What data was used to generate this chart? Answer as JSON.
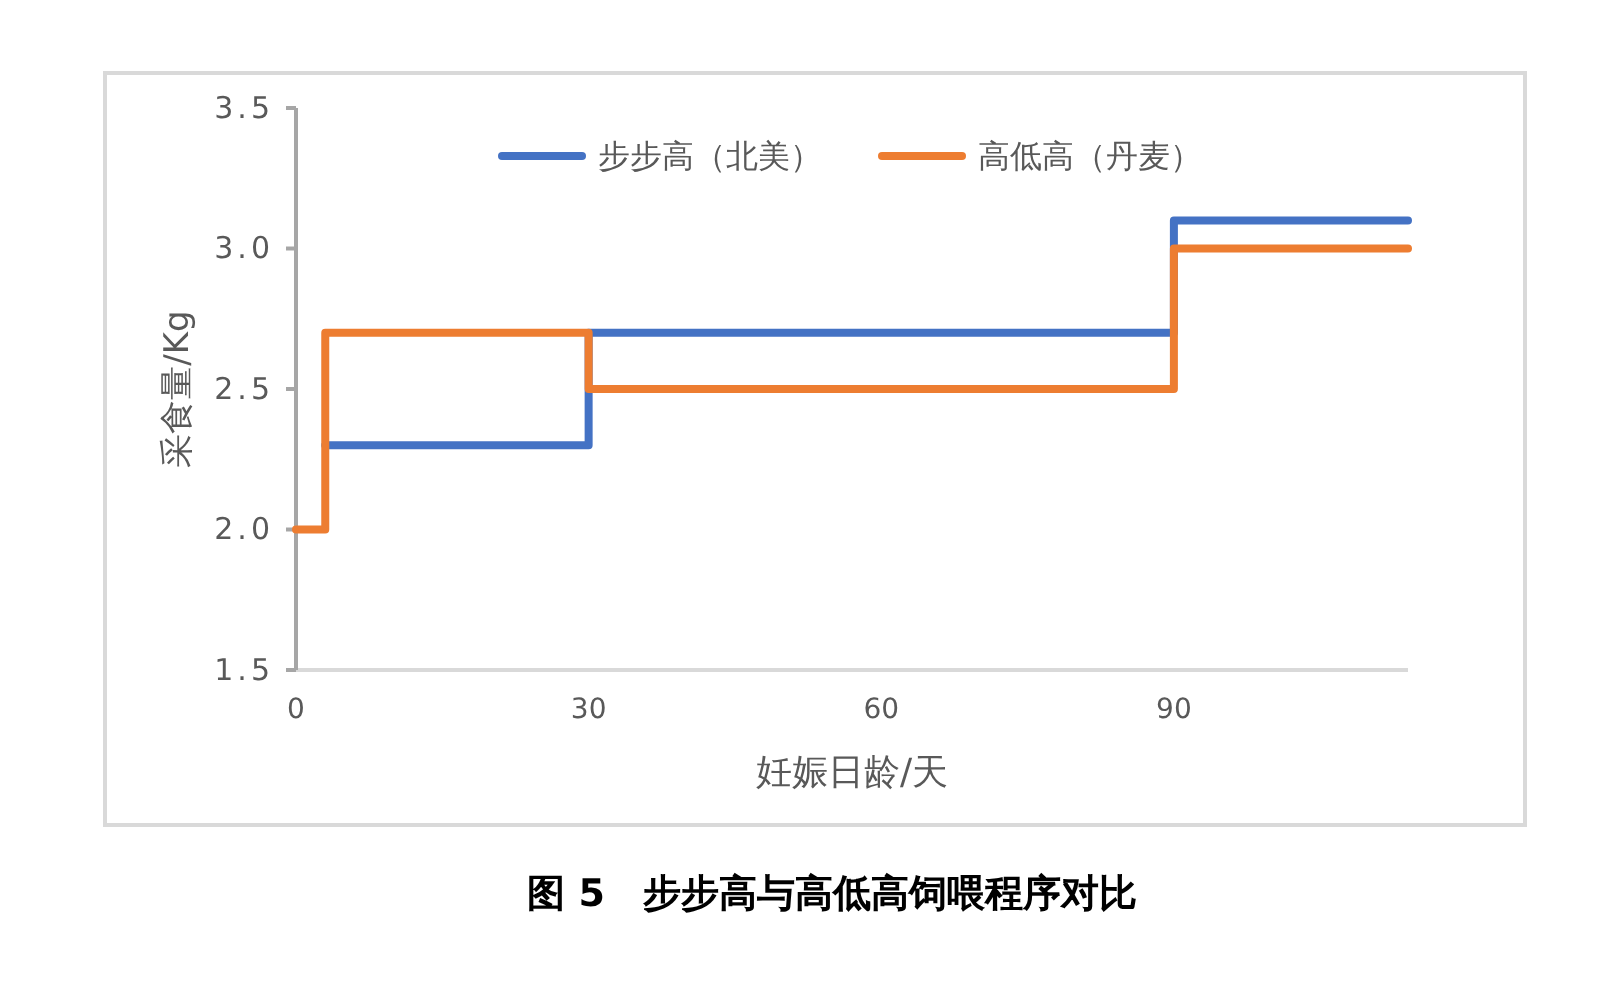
{
  "chart_data": {
    "type": "step",
    "title": "图 5　步步高与高低高饲喂程序对比",
    "xlabel": "妊娠日龄/天",
    "ylabel": "采食量/Kg",
    "xlim": [
      0,
      114
    ],
    "xticks": [
      0,
      30,
      60,
      90
    ],
    "ylim": [
      1.5,
      3.5
    ],
    "yticks": [
      {
        "value": 1.5,
        "label": "1.5"
      },
      {
        "value": 2,
        "label": "2.0"
      },
      {
        "value": 2.5,
        "label": "2.5"
      },
      {
        "value": 3,
        "label": "3.0"
      },
      {
        "value": 3.5,
        "label": "3.5"
      }
    ],
    "legend": "top",
    "series": [
      {
        "name": "步步高（北美）",
        "color": "#4472c4",
        "x": [
          3,
          30,
          90,
          114
        ],
        "values": [
          2.3,
          2.7,
          3.1,
          3.1
        ]
      },
      {
        "name": "高低高（丹麦）",
        "color": "#ed7d31",
        "x": [
          0,
          3,
          30,
          90,
          114
        ],
        "values": [
          2.0,
          2.7,
          2.5,
          3.0,
          3.0
        ]
      }
    ]
  }
}
